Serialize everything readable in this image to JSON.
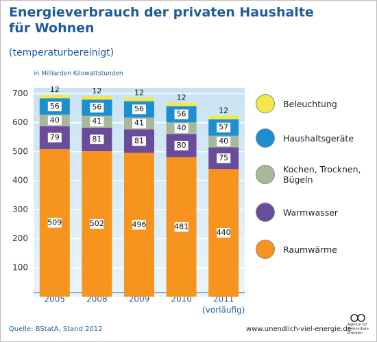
{
  "chart_data": {
    "type": "stacked_bar",
    "title": "Energieverbrauch der privaten Haushalte für Wohnen",
    "subtitle": "(temperaturbereinigt)",
    "y_label": "in Milliarden Kilowattstunden",
    "categories": [
      "2005",
      "2008",
      "2009",
      "2010",
      "2011"
    ],
    "x_note": "(vorläufig)",
    "series": [
      {
        "name": "Raumwärme",
        "color": "#f7941d",
        "values": [
          509,
          502,
          496,
          481,
          440
        ]
      },
      {
        "name": "Warmwasser",
        "color": "#6a4c9c",
        "values": [
          79,
          81,
          81,
          80,
          75
        ]
      },
      {
        "name": "Kochen, Trocknen, Bügeln",
        "color": "#a9b79b",
        "values": [
          40,
          41,
          41,
          40,
          40
        ]
      },
      {
        "name": "Haushaltsgeräte",
        "color": "#1b8fd2",
        "values": [
          56,
          56,
          56,
          56,
          57
        ]
      },
      {
        "name": "Beleuchtung",
        "color": "#f3e84a",
        "values": [
          12,
          12,
          12,
          12,
          12
        ]
      }
    ],
    "ylim": [
      0,
      720
    ],
    "yticks": [
      100,
      200,
      300,
      400,
      500,
      600,
      700
    ],
    "grid": true,
    "source": "Quelle: BStatA, Stand 2012",
    "url": "www.unendlich-viel-energie.de",
    "logo_text": "Agentur für Erneuerbare Energien"
  }
}
